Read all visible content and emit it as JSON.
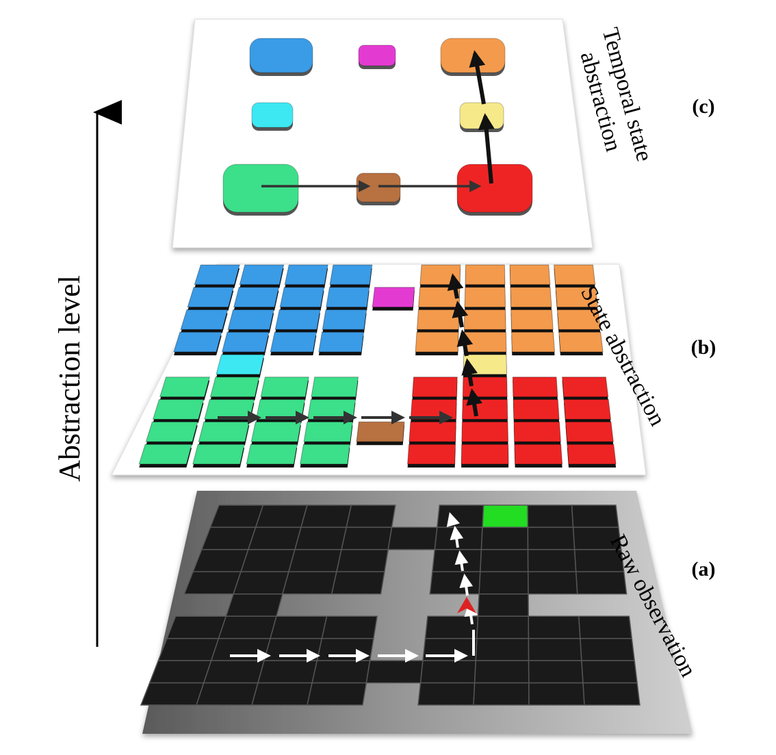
{
  "axis": {
    "label": "Abstraction level"
  },
  "layers": [
    {
      "id": "raw",
      "letter": "(a)",
      "title": "Raw observation"
    },
    {
      "id": "state",
      "letter": "(b)",
      "title": "State abstraction"
    },
    {
      "id": "temporal",
      "letter": "(c)",
      "title_lines": [
        "Temporal state",
        "abstraction"
      ]
    }
  ],
  "colors": {
    "blue": "#3a9be6",
    "orange": "#f39a4c",
    "green": "#3cdf8a",
    "red": "#ee2424",
    "magenta": "#e33bd1",
    "cyan": "#3de8f2",
    "yellow": "#f6e98a",
    "brown": "#b87140",
    "raw_cell": "#1a1a1a",
    "raw_goal": "#22dd22",
    "raw_agent": "#dd2222"
  }
}
